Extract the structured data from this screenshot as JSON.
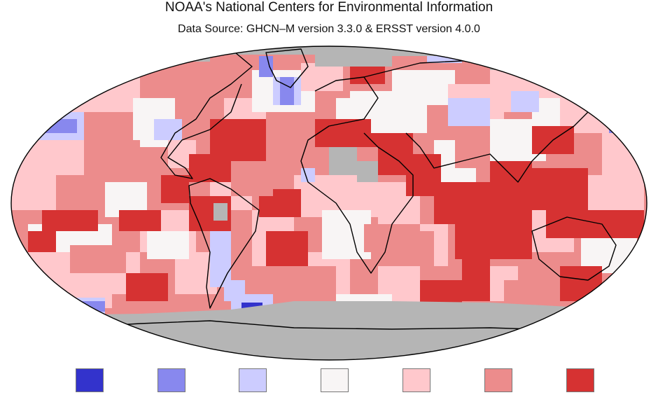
{
  "header": {
    "title": "NOAA's National Centers for Environmental Information",
    "subtitle": "Data Source: GHCN–M version 3.3.0 & ERSST version 4.0.0"
  },
  "colors": {
    "ocean_outline": "#000000",
    "no_data": "#b5b5b5",
    "palette": [
      "#3333cc",
      "#8888ee",
      "#ccccff",
      "#f8f5f5",
      "#ffc8cc",
      "#ec8c8c",
      "#d63232"
    ]
  },
  "legend": {
    "swatches": [
      {
        "color": "#3333cc",
        "icon": "much-colder-swatch"
      },
      {
        "color": "#8888ee",
        "icon": "colder-swatch"
      },
      {
        "color": "#ccccff",
        "icon": "slightly-colder-swatch"
      },
      {
        "color": "#f8f5f5",
        "icon": "near-normal-swatch"
      },
      {
        "color": "#ffc8cc",
        "icon": "slightly-warmer-swatch"
      },
      {
        "color": "#ec8c8c",
        "icon": "warmer-swatch"
      },
      {
        "color": "#d63232",
        "icon": "much-warmer-swatch"
      }
    ]
  },
  "map": {
    "projection": "robinson",
    "grid_cells_description_free": true
  }
}
